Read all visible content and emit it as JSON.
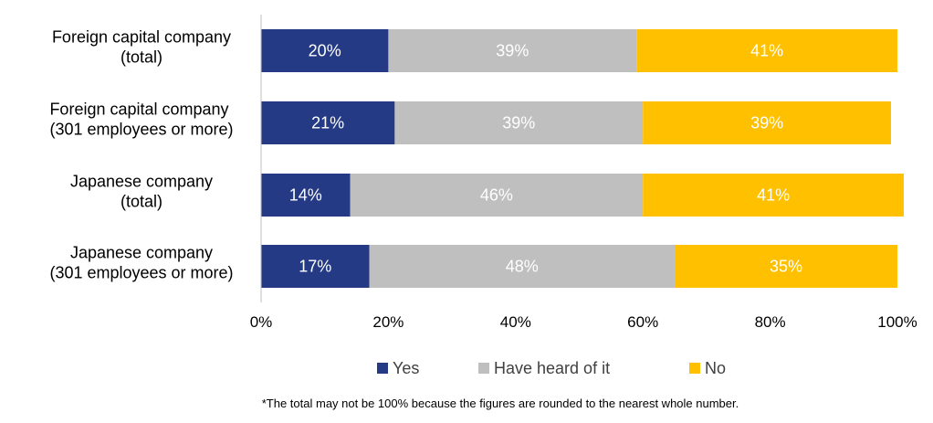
{
  "chart_data": {
    "type": "bar",
    "orientation": "horizontal",
    "stacked": true,
    "categories": [
      [
        "Foreign capital company",
        "(total)"
      ],
      [
        "Foreign capital company ",
        "(301 employees or more)"
      ],
      [
        "Japanese company",
        "(total)"
      ],
      [
        "Japanese company",
        "(301 employees or more)"
      ]
    ],
    "series": [
      {
        "name": "Yes",
        "color": "#253A84",
        "label_color": "#ffffff",
        "values": [
          20,
          21,
          14,
          17
        ]
      },
      {
        "name": "Have heard of it",
        "color": "#BFBFBF",
        "label_color": "#ffffff",
        "values": [
          39,
          39,
          46,
          48
        ]
      },
      {
        "name": "No",
        "color": "#FFC000",
        "label_color": "#ffffff",
        "values": [
          41,
          39,
          41,
          35
        ]
      }
    ],
    "xlim": [
      0,
      100
    ],
    "x_ticks": [
      0,
      20,
      40,
      60,
      80,
      100
    ],
    "tick_suffix": "%",
    "legend_position": "bottom",
    "grid": false
  },
  "footnote": "*The total may not be 100% because the figures are rounded to the nearest whole number."
}
